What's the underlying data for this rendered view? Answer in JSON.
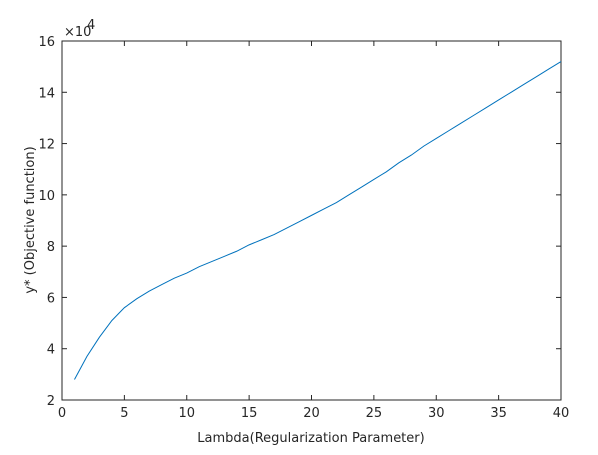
{
  "chart_data": {
    "type": "line",
    "xlabel": "Lambda(Regularization Parameter)",
    "ylabel": "y* (Objective function)",
    "y_multiplier": "×10",
    "y_multiplier_exponent": "4",
    "x": [
      1,
      2,
      3,
      4,
      5,
      6,
      7,
      8,
      9,
      10,
      11,
      12,
      13,
      14,
      15,
      16,
      17,
      18,
      19,
      20,
      21,
      22,
      23,
      24,
      25,
      26,
      27,
      28,
      29,
      30,
      31,
      32,
      33,
      34,
      35,
      36,
      37,
      38,
      39,
      40
    ],
    "series": [
      {
        "name": "y*",
        "color": "#0072bd",
        "values": [
          2.8,
          3.7,
          4.45,
          5.1,
          5.6,
          5.95,
          6.25,
          6.5,
          6.75,
          6.95,
          7.2,
          7.4,
          7.6,
          7.8,
          8.05,
          8.25,
          8.45,
          8.7,
          8.95,
          9.2,
          9.45,
          9.7,
          10.0,
          10.3,
          10.6,
          10.9,
          11.25,
          11.55,
          11.9,
          12.2,
          12.5,
          12.8,
          13.1,
          13.4,
          13.7,
          14.0,
          14.3,
          14.6,
          14.9,
          15.2
        ]
      }
    ],
    "xlim": [
      0,
      40
    ],
    "xticks": [
      0,
      5,
      10,
      15,
      20,
      25,
      30,
      35,
      40
    ],
    "ylim": [
      2,
      16
    ],
    "yticks": [
      2,
      4,
      6,
      8,
      10,
      12,
      14,
      16
    ]
  }
}
